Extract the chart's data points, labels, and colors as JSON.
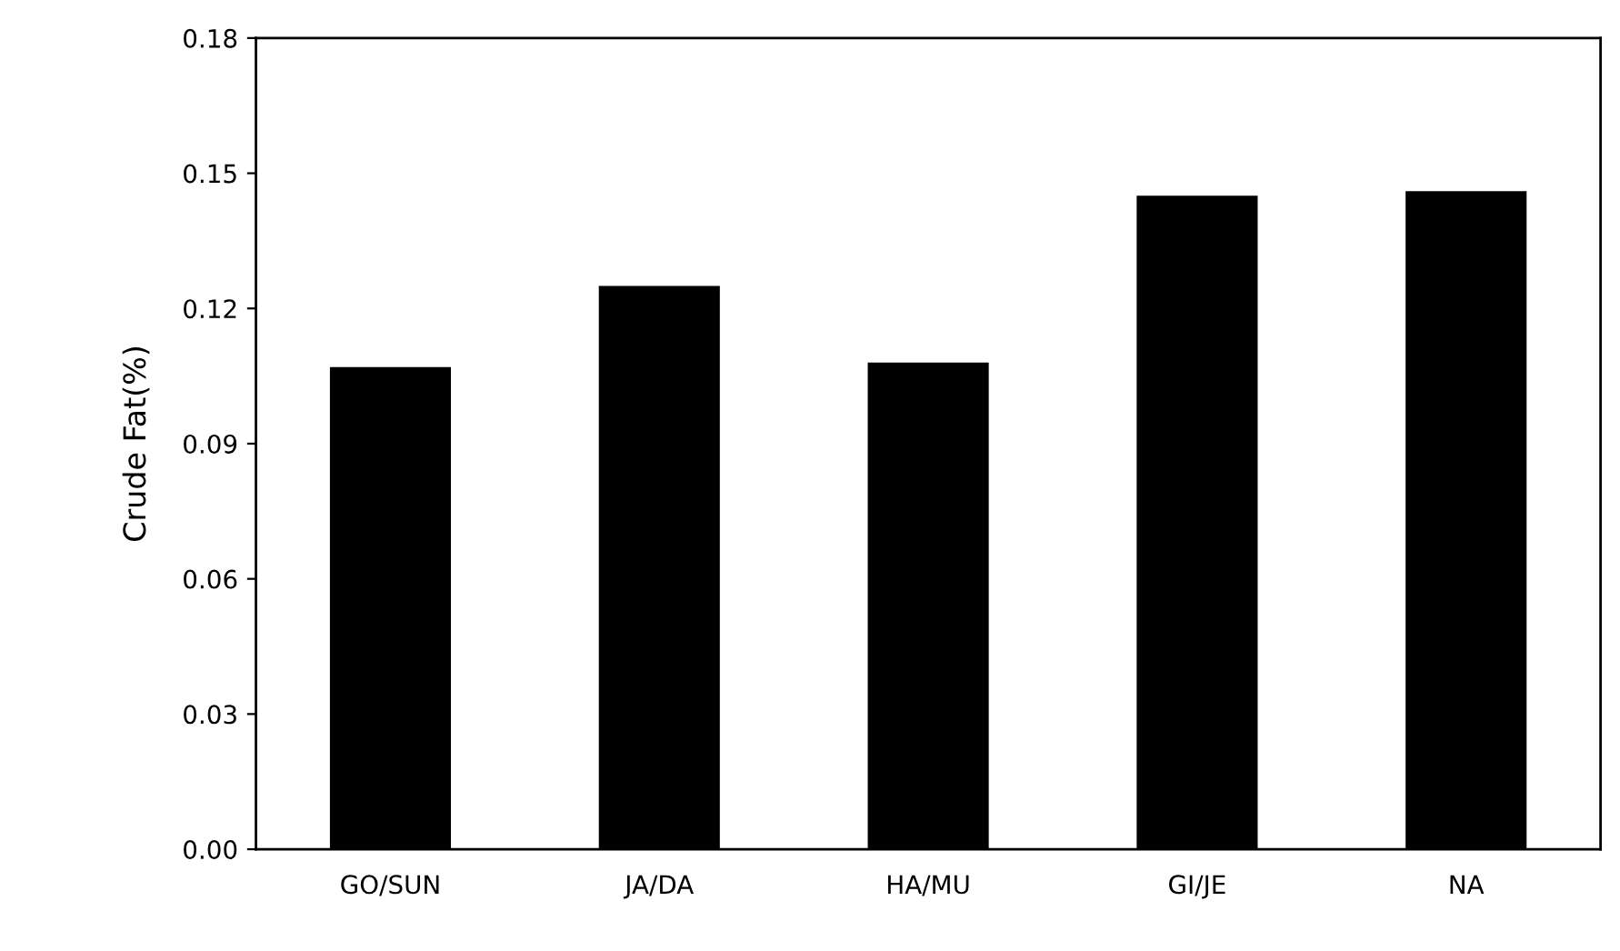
{
  "chart_data": {
    "type": "bar",
    "ylabel": "Crude Fat(%)",
    "categories": [
      "GO/SUN",
      "JA/DA",
      "HA/MU",
      "GI/JE",
      "NA"
    ],
    "values": [
      0.107,
      0.125,
      0.108,
      0.145,
      0.146
    ],
    "color": "#000000",
    "ylim": [
      0,
      0.18
    ],
    "yticks": [
      {
        "value": 0,
        "label": "0.00"
      },
      {
        "value": 0.03,
        "label": "0.03"
      },
      {
        "value": 0.06,
        "label": "0.06"
      },
      {
        "value": 0.09,
        "label": "0.09"
      },
      {
        "value": 0.12,
        "label": "0.12"
      },
      {
        "value": 0.15,
        "label": "0.15"
      },
      {
        "value": 0.18,
        "label": "0.18"
      }
    ],
    "grid": false
  }
}
